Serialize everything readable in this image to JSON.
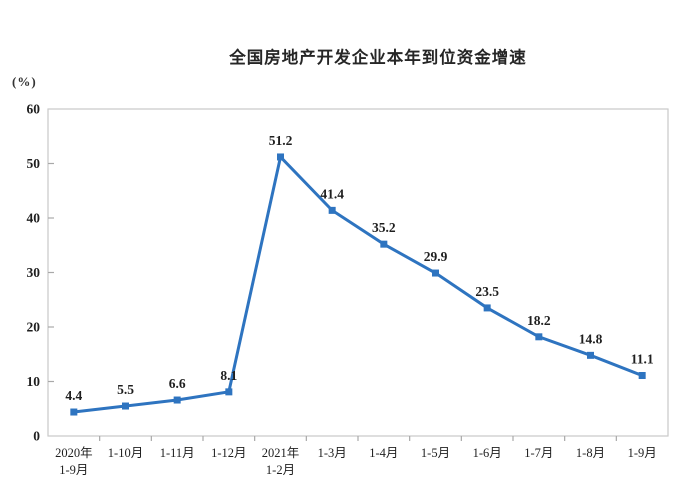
{
  "chart_data": {
    "type": "line",
    "title": "全国房地产开发企业本年到位资金增速",
    "ylabel": "(%)",
    "xlabel": "",
    "ylim": [
      0,
      60
    ],
    "ytick_step": 10,
    "yticks": [
      0,
      10,
      20,
      30,
      40,
      50,
      60
    ],
    "grid": false,
    "legend_position": "none",
    "line_color": "#2e74c0",
    "marker": "square",
    "border_color": "#c9c9c9",
    "tick_color": "#a9a9a9",
    "categories": [
      [
        "2020年",
        "1-9月"
      ],
      [
        "1-10月"
      ],
      [
        "1-11月"
      ],
      [
        "1-12月"
      ],
      [
        "2021年",
        "1-2月"
      ],
      [
        "1-3月"
      ],
      [
        "1-4月"
      ],
      [
        "1-5月"
      ],
      [
        "1-6月"
      ],
      [
        "1-7月"
      ],
      [
        "1-8月"
      ],
      [
        "1-9月"
      ]
    ],
    "values": [
      4.4,
      5.5,
      6.6,
      8.1,
      51.2,
      41.4,
      35.2,
      29.9,
      23.5,
      18.2,
      14.8,
      11.1
    ]
  }
}
